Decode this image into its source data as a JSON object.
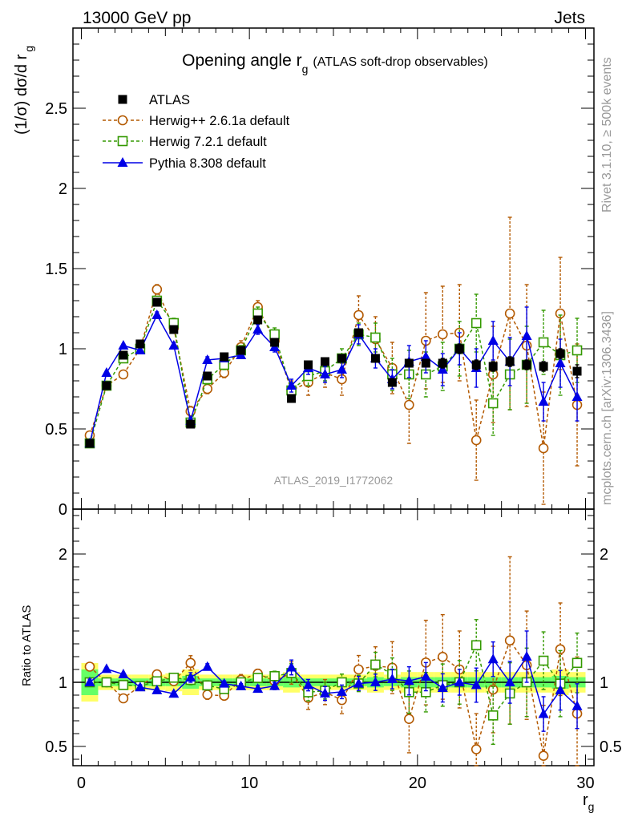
{
  "header": {
    "left": "13000 GeV pp",
    "right": "Jets"
  },
  "plot": {
    "title_main": "Opening angle r",
    "title_sub": "g",
    "title_paren": "(ATLAS soft-drop observables)",
    "ylabel_main": "(1/σ) dσ/d r",
    "ylabel_sub": "g",
    "xlabel_main": "r",
    "xlabel_sub": "g",
    "ratio_ylabel": "Ratio to ATLAS",
    "watermark": "ATLAS_2019_I1772062",
    "side_rivet": "Rivet 3.1.10, ≥ 500k events",
    "side_mcplots": "mcplots.cern.ch [arXiv:1306.3436]"
  },
  "colors": {
    "atlas": "#000000",
    "herwigpp": "#b35900",
    "herwig7": "#339900",
    "pythia": "#0000e6",
    "band_inner": "#66ff66",
    "band_outer": "#ffff66"
  },
  "chart_data": {
    "type": "scatter",
    "x": [
      0.5,
      1.5,
      2.5,
      3.5,
      4.5,
      5.5,
      6.5,
      7.5,
      8.5,
      9.5,
      10.5,
      11.5,
      12.5,
      13.5,
      14.5,
      15.5,
      16.5,
      17.5,
      18.5,
      19.5,
      20.5,
      21.5,
      22.5,
      23.5,
      24.5,
      25.5,
      26.5,
      27.5,
      28.5,
      29.5
    ],
    "xlim": [
      -0.5,
      30.5
    ],
    "xticks": [
      "0",
      "10",
      "20",
      "30"
    ],
    "main_ylim": [
      0,
      3.0
    ],
    "main_yticks": [
      "0",
      "0.5",
      "1",
      "1.5",
      "2",
      "2.5"
    ],
    "ratio_ylim": [
      0.35,
      2.35
    ],
    "ratio_yticks": [
      "0.5",
      "1",
      "2"
    ],
    "legend_position": "top-left",
    "series": [
      {
        "name": "ATLAS",
        "key": "atlas",
        "marker": "filled-square",
        "values": [
          0.41,
          0.77,
          0.96,
          1.03,
          1.29,
          1.12,
          0.53,
          0.83,
          0.95,
          0.99,
          1.18,
          1.04,
          0.69,
          0.9,
          0.92,
          0.94,
          1.1,
          0.94,
          0.79,
          0.91,
          0.91,
          0.91,
          1.0,
          0.9,
          0.89,
          0.92,
          0.9,
          0.89,
          0.97,
          0.86
        ],
        "errors": [
          0.01,
          0.01,
          0.01,
          0.01,
          0.01,
          0.01,
          0.01,
          0.01,
          0.01,
          0.01,
          0.01,
          0.01,
          0.02,
          0.02,
          0.02,
          0.02,
          0.02,
          0.02,
          0.02,
          0.02,
          0.02,
          0.03,
          0.03,
          0.03,
          0.03,
          0.03,
          0.03,
          0.03,
          0.03,
          0.04
        ]
      },
      {
        "name": "Herwig++ 2.6.1a default",
        "key": "herwigpp",
        "marker": "open-circle",
        "values": [
          0.46,
          0.77,
          0.84,
          1.0,
          1.37,
          1.13,
          0.61,
          0.75,
          0.85,
          1.01,
          1.26,
          1.05,
          0.74,
          0.79,
          0.85,
          0.81,
          1.21,
          1.06,
          0.88,
          0.65,
          1.05,
          1.09,
          1.1,
          0.43,
          0.84,
          1.22,
          1.02,
          0.38,
          1.22,
          0.65
        ],
        "errors": [
          0.01,
          0.02,
          0.02,
          0.02,
          0.03,
          0.03,
          0.03,
          0.03,
          0.03,
          0.04,
          0.04,
          0.05,
          0.06,
          0.08,
          0.09,
          0.1,
          0.12,
          0.14,
          0.16,
          0.24,
          0.3,
          0.3,
          0.3,
          0.25,
          0.3,
          0.6,
          0.38,
          0.35,
          0.35,
          0.38
        ]
      },
      {
        "name": "Herwig 7.2.1 default",
        "key": "herwig7",
        "marker": "open-square",
        "values": [
          0.41,
          0.77,
          0.94,
          1.0,
          1.3,
          1.16,
          0.54,
          0.81,
          0.9,
          0.99,
          1.22,
          1.09,
          0.74,
          0.83,
          0.86,
          0.94,
          1.09,
          1.07,
          0.84,
          0.84,
          0.84,
          0.89,
          1.0,
          1.16,
          0.66,
          0.84,
          0.9,
          1.04,
          0.96,
          0.99
        ],
        "errors": [
          0.01,
          0.02,
          0.02,
          0.02,
          0.02,
          0.03,
          0.02,
          0.03,
          0.03,
          0.03,
          0.04,
          0.04,
          0.05,
          0.06,
          0.06,
          0.06,
          0.07,
          0.09,
          0.1,
          0.15,
          0.14,
          0.15,
          0.17,
          0.18,
          0.2,
          0.22,
          0.24,
          0.2,
          0.25,
          0.2
        ]
      },
      {
        "name": "Pythia 8.308 default",
        "key": "pythia",
        "marker": "filled-triangle",
        "values": [
          0.41,
          0.85,
          1.02,
          0.99,
          1.21,
          1.02,
          0.55,
          0.93,
          0.94,
          0.96,
          1.12,
          1.01,
          0.77,
          0.88,
          0.84,
          0.87,
          1.09,
          0.94,
          0.81,
          0.92,
          0.95,
          0.87,
          1.0,
          0.88,
          1.05,
          0.92,
          1.08,
          0.67,
          0.91,
          0.7
        ],
        "errors": [
          0.01,
          0.01,
          0.01,
          0.02,
          0.02,
          0.02,
          0.02,
          0.02,
          0.02,
          0.02,
          0.03,
          0.03,
          0.04,
          0.04,
          0.05,
          0.05,
          0.06,
          0.06,
          0.06,
          0.1,
          0.1,
          0.1,
          0.1,
          0.12,
          0.12,
          0.15,
          0.18,
          0.12,
          0.15,
          0.15
        ]
      }
    ],
    "ratio_band": {
      "inner": [
        0.1,
        0.03,
        0.03,
        0.03,
        0.03,
        0.03,
        0.05,
        0.03,
        0.03,
        0.03,
        0.03,
        0.03,
        0.04,
        0.03,
        0.03,
        0.03,
        0.03,
        0.04,
        0.03,
        0.04,
        0.04,
        0.04,
        0.04,
        0.04,
        0.04,
        0.04,
        0.04,
        0.04,
        0.05,
        0.04
      ],
      "outer": [
        0.15,
        0.06,
        0.06,
        0.06,
        0.06,
        0.07,
        0.1,
        0.06,
        0.06,
        0.06,
        0.06,
        0.06,
        0.08,
        0.06,
        0.06,
        0.06,
        0.06,
        0.08,
        0.06,
        0.08,
        0.08,
        0.08,
        0.08,
        0.08,
        0.08,
        0.08,
        0.08,
        0.08,
        0.1,
        0.08
      ]
    }
  }
}
